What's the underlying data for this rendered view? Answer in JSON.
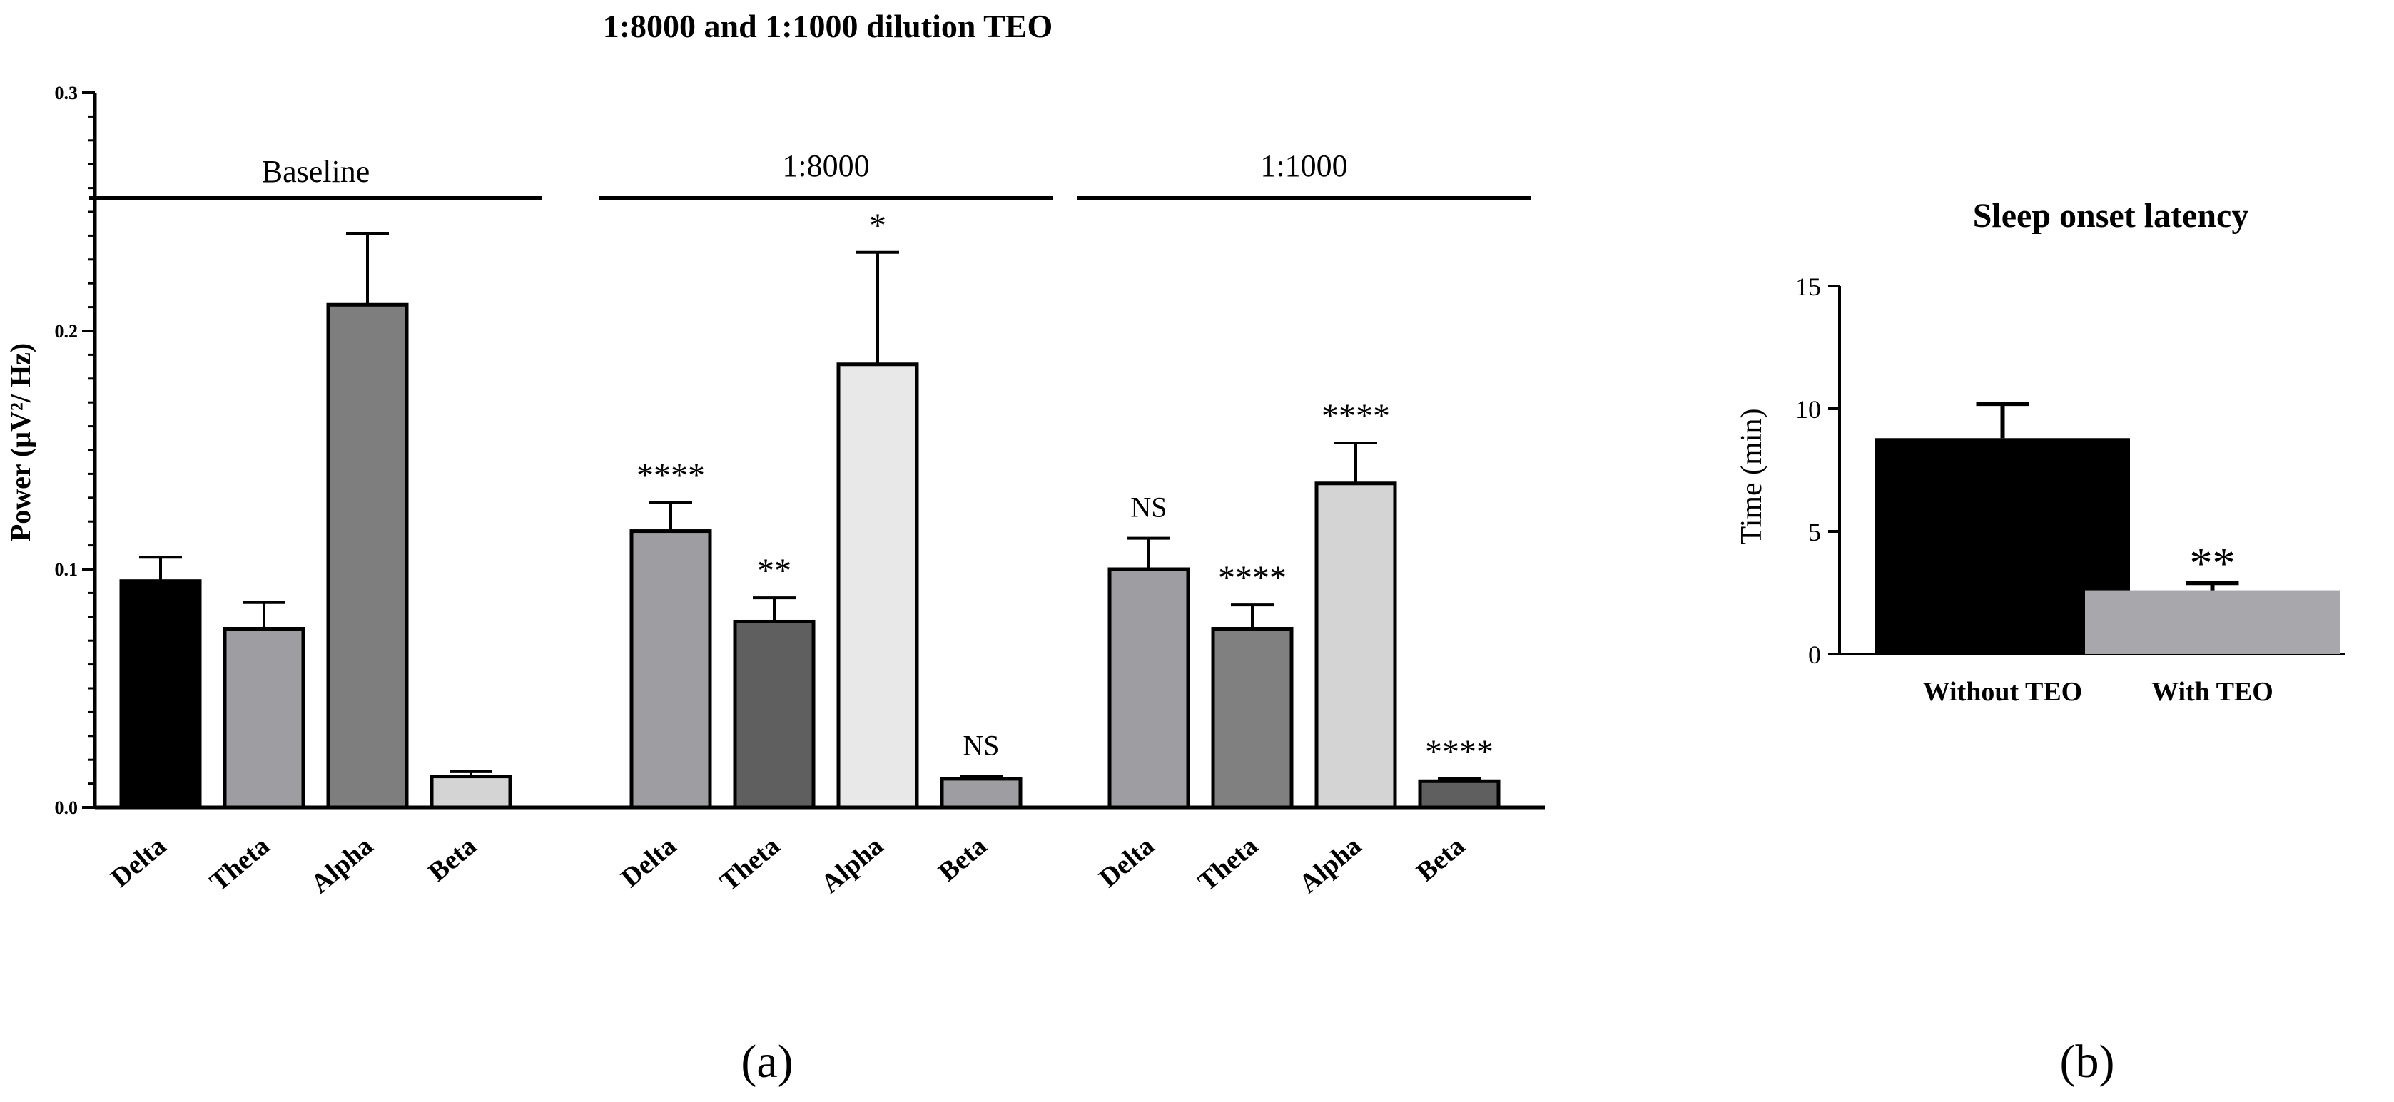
{
  "chart_data": [
    {
      "type": "bar",
      "title": "1:8000 and 1:1000 dilution TEO",
      "ylabel": "Power (μV²/ Hz)",
      "ylim": [
        0,
        0.3
      ],
      "yticks": [
        0.0,
        0.1,
        0.2,
        0.3
      ],
      "ytick_labels": [
        "0.0",
        "0.1",
        "0.2",
        "0.3"
      ],
      "panel_label": "(a)",
      "groups": [
        {
          "name": "Baseline",
          "bars": [
            {
              "category": "Delta",
              "value": 0.095,
              "error": 0.01,
              "fill": "#000000",
              "annotation": ""
            },
            {
              "category": "Theta",
              "value": 0.075,
              "error": 0.011,
              "fill": "#9e9ea2",
              "annotation": ""
            },
            {
              "category": "Alpha",
              "value": 0.211,
              "error": 0.03,
              "fill": "#7e7e7e",
              "annotation": ""
            },
            {
              "category": "Beta",
              "value": 0.013,
              "error": 0.002,
              "fill": "#d4d4d4",
              "annotation": ""
            }
          ]
        },
        {
          "name": "1:8000",
          "bars": [
            {
              "category": "Delta",
              "value": 0.116,
              "error": 0.012,
              "fill": "#9e9ea2",
              "annotation": "****"
            },
            {
              "category": "Theta",
              "value": 0.078,
              "error": 0.01,
              "fill": "#5f5f5f",
              "annotation": "**"
            },
            {
              "category": "Alpha",
              "value": 0.186,
              "error": 0.047,
              "fill": "#e8e8e8",
              "annotation": "*"
            },
            {
              "category": "Beta",
              "value": 0.012,
              "error": 0.001,
              "fill": "#9e9ea2",
              "annotation": "NS"
            }
          ]
        },
        {
          "name": "1:1000",
          "bars": [
            {
              "category": "Delta",
              "value": 0.1,
              "error": 0.013,
              "fill": "#9e9ea2",
              "annotation": "NS"
            },
            {
              "category": "Theta",
              "value": 0.075,
              "error": 0.01,
              "fill": "#808080",
              "annotation": "****"
            },
            {
              "category": "Alpha",
              "value": 0.136,
              "error": 0.017,
              "fill": "#d4d4d4",
              "annotation": "****"
            },
            {
              "category": "Beta",
              "value": 0.011,
              "error": 0.001,
              "fill": "#5f5f5f",
              "annotation": "****"
            }
          ]
        }
      ]
    },
    {
      "type": "bar",
      "title": "Sleep onset latency",
      "ylabel": "Time (min)",
      "ylim": [
        0,
        15
      ],
      "yticks": [
        0,
        5,
        10,
        15
      ],
      "ytick_labels": [
        "0",
        "5",
        "10",
        "15"
      ],
      "panel_label": "(b)",
      "bars": [
        {
          "category": "Without TEO",
          "value": 8.8,
          "error": 1.4,
          "fill": "#000000",
          "annotation": ""
        },
        {
          "category": "With TEO",
          "value": 2.6,
          "error": 0.3,
          "fill": "#a8a8ac",
          "annotation": "**"
        }
      ]
    }
  ]
}
